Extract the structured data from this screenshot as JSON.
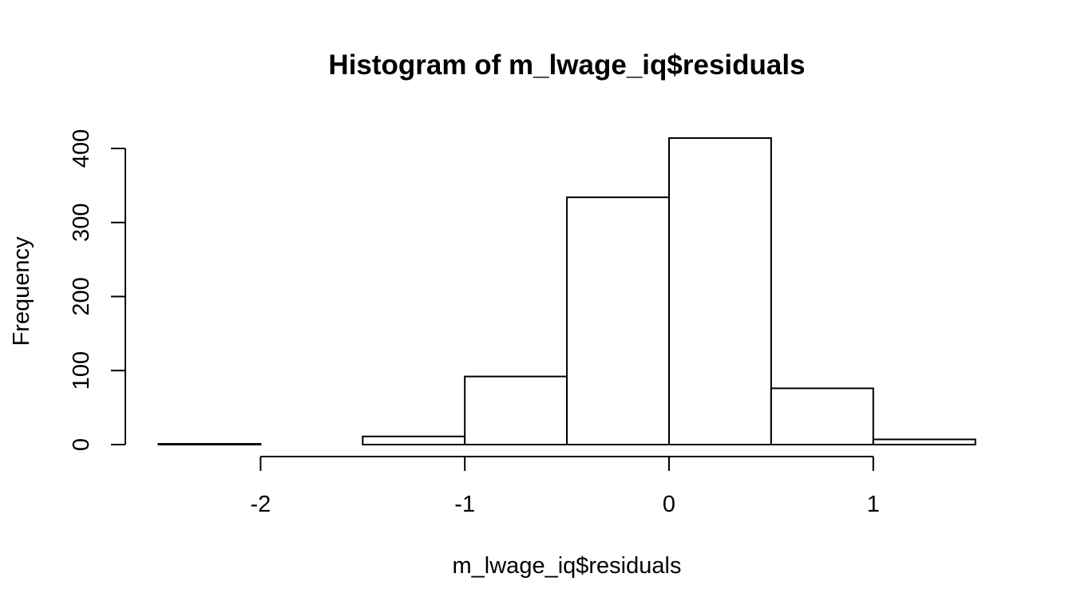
{
  "chart_data": {
    "type": "bar",
    "title": "Histogram of m_lwage_iq$residuals",
    "xlabel": "m_lwage_iq$residuals",
    "ylabel": "Frequency",
    "bins": [
      {
        "from": -2.5,
        "to": -2.0,
        "count": 1
      },
      {
        "from": -2.0,
        "to": -1.5,
        "count": 0
      },
      {
        "from": -1.5,
        "to": -1.0,
        "count": 11
      },
      {
        "from": -1.0,
        "to": -0.5,
        "count": 92
      },
      {
        "from": -0.5,
        "to": 0.0,
        "count": 334
      },
      {
        "from": 0.0,
        "to": 0.5,
        "count": 414
      },
      {
        "from": 0.5,
        "to": 1.0,
        "count": 76
      },
      {
        "from": 1.0,
        "to": 1.5,
        "count": 7
      }
    ],
    "x_ticks": [
      {
        "value": -2,
        "label": "-2"
      },
      {
        "value": -1,
        "label": "-1"
      },
      {
        "value": 0,
        "label": "0"
      },
      {
        "value": 1,
        "label": "1"
      }
    ],
    "y_ticks": [
      {
        "value": 0,
        "label": "0"
      },
      {
        "value": 100,
        "label": "100"
      },
      {
        "value": 200,
        "label": "200"
      },
      {
        "value": 300,
        "label": "300"
      },
      {
        "value": 400,
        "label": "400"
      }
    ],
    "xlim": [
      -2.5,
      1.5
    ],
    "ylim": [
      0,
      414
    ],
    "grid": false,
    "bar_fill": "#ffffff",
    "bar_stroke": "#000000"
  }
}
